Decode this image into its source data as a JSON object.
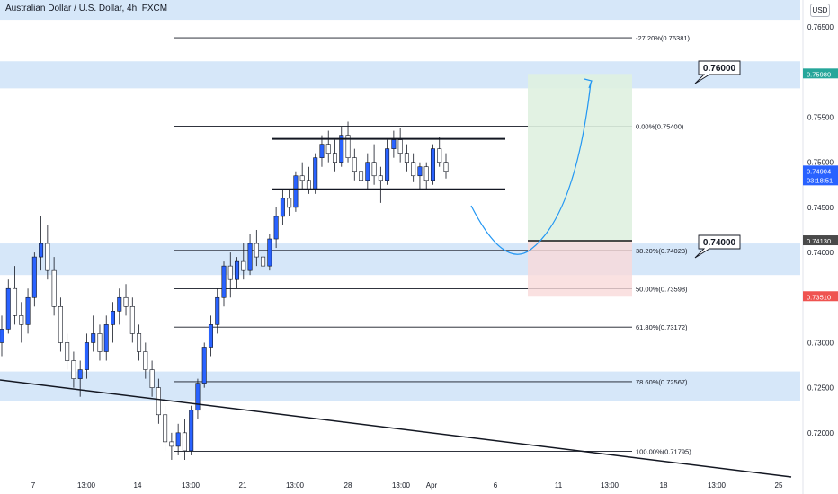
{
  "title": "Australian Dollar / U.S. Dollar, 4h, FXCM",
  "currency_button": "USD",
  "price_tags": [
    {
      "label": "0.75980",
      "color": "#26a69a"
    },
    {
      "label": "0.74904",
      "sub": "03:18:51",
      "color": "#2962ff"
    },
    {
      "label": "0.74130",
      "color": "#4a4a4a"
    },
    {
      "label": "0.73510",
      "color": "#ef5350"
    }
  ],
  "callouts": [
    "0.76000",
    "0.74000"
  ],
  "chart_data": {
    "type": "candlestick",
    "symbol": "AUDUSD",
    "timeframe": "4h",
    "ylim": [
      0.716,
      0.768
    ],
    "y_ticks": [
      "0.76500",
      "0.76000",
      "0.75500",
      "0.75000",
      "0.74500",
      "0.74000",
      "0.73500",
      "0.73000",
      "0.72500",
      "0.72000"
    ],
    "x_ticks": [
      "7",
      "13:00",
      "14",
      "13:00",
      "21",
      "13:00",
      "28",
      "13:00",
      "Apr",
      "6",
      "11",
      "13:00",
      "18",
      "13:00",
      "25"
    ],
    "fib_levels": [
      {
        "label": "-27.20%(0.76381)",
        "price": 0.76381
      },
      {
        "label": "0.00%(0.75400)",
        "price": 0.754
      },
      {
        "label": "38.20%(0.74023)",
        "price": 0.74023
      },
      {
        "label": "50.00%(0.73598)",
        "price": 0.73598
      },
      {
        "label": "61.80%(0.73172)",
        "price": 0.73172
      },
      {
        "label": "78.60%(0.72567)",
        "price": 0.72567
      },
      {
        "label": "100.00%(0.71795)",
        "price": 0.71795
      }
    ],
    "support_zones": [
      {
        "from": 0.7658,
        "to": 0.768
      },
      {
        "from": 0.7582,
        "to": 0.7612
      },
      {
        "from": 0.7375,
        "to": 0.741
      },
      {
        "from": 0.7235,
        "to": 0.7268
      }
    ],
    "range_box": {
      "top": 0.7526,
      "bottom": 0.747
    },
    "trade_position": {
      "take_profit": 0.7598,
      "entry": 0.7413,
      "stop": 0.7351
    },
    "last_price": 0.74904,
    "candles": [
      [
        0.73,
        0.733,
        0.7285,
        0.7315
      ],
      [
        0.7315,
        0.737,
        0.731,
        0.736
      ],
      [
        0.736,
        0.7385,
        0.732,
        0.733
      ],
      [
        0.733,
        0.7345,
        0.73,
        0.732
      ],
      [
        0.732,
        0.736,
        0.731,
        0.735
      ],
      [
        0.735,
        0.74,
        0.734,
        0.7395
      ],
      [
        0.7395,
        0.744,
        0.738,
        0.741
      ],
      [
        0.741,
        0.743,
        0.737,
        0.738
      ],
      [
        0.738,
        0.7395,
        0.733,
        0.734
      ],
      [
        0.734,
        0.735,
        0.729,
        0.73
      ],
      [
        0.73,
        0.731,
        0.727,
        0.728
      ],
      [
        0.728,
        0.729,
        0.725,
        0.726
      ],
      [
        0.726,
        0.728,
        0.724,
        0.727
      ],
      [
        0.727,
        0.731,
        0.726,
        0.73
      ],
      [
        0.73,
        0.733,
        0.729,
        0.731
      ],
      [
        0.731,
        0.732,
        0.728,
        0.729
      ],
      [
        0.729,
        0.733,
        0.728,
        0.732
      ],
      [
        0.732,
        0.7345,
        0.73,
        0.7335
      ],
      [
        0.7335,
        0.736,
        0.732,
        0.735
      ],
      [
        0.735,
        0.7365,
        0.733,
        0.734
      ],
      [
        0.734,
        0.735,
        0.73,
        0.731
      ],
      [
        0.731,
        0.732,
        0.728,
        0.729
      ],
      [
        0.729,
        0.73,
        0.726,
        0.727
      ],
      [
        0.727,
        0.728,
        0.724,
        0.725
      ],
      [
        0.725,
        0.726,
        0.721,
        0.722
      ],
      [
        0.722,
        0.723,
        0.718,
        0.719
      ],
      [
        0.719,
        0.72,
        0.717,
        0.7185
      ],
      [
        0.7185,
        0.721,
        0.7175,
        0.72
      ],
      [
        0.72,
        0.7215,
        0.717,
        0.718
      ],
      [
        0.718,
        0.723,
        0.7175,
        0.7225
      ],
      [
        0.7225,
        0.726,
        0.7215,
        0.7255
      ],
      [
        0.7255,
        0.73,
        0.725,
        0.7295
      ],
      [
        0.7295,
        0.733,
        0.7285,
        0.732
      ],
      [
        0.732,
        0.736,
        0.731,
        0.735
      ],
      [
        0.735,
        0.739,
        0.734,
        0.7385
      ],
      [
        0.7385,
        0.74,
        0.735,
        0.737
      ],
      [
        0.737,
        0.7395,
        0.736,
        0.739
      ],
      [
        0.739,
        0.741,
        0.737,
        0.738
      ],
      [
        0.738,
        0.742,
        0.7375,
        0.741
      ],
      [
        0.741,
        0.7425,
        0.7385,
        0.7395
      ],
      [
        0.7395,
        0.7405,
        0.7375,
        0.7385
      ],
      [
        0.7385,
        0.742,
        0.738,
        0.7415
      ],
      [
        0.7415,
        0.745,
        0.7405,
        0.744
      ],
      [
        0.744,
        0.747,
        0.743,
        0.746
      ],
      [
        0.746,
        0.747,
        0.744,
        0.745
      ],
      [
        0.745,
        0.749,
        0.7445,
        0.7485
      ],
      [
        0.7485,
        0.75,
        0.747,
        0.748
      ],
      [
        0.748,
        0.7495,
        0.7465,
        0.747
      ],
      [
        0.747,
        0.751,
        0.7465,
        0.7505
      ],
      [
        0.7505,
        0.753,
        0.7495,
        0.752
      ],
      [
        0.752,
        0.7535,
        0.75,
        0.751
      ],
      [
        0.751,
        0.7525,
        0.749,
        0.75
      ],
      [
        0.75,
        0.754,
        0.7495,
        0.753
      ],
      [
        0.753,
        0.7545,
        0.75,
        0.7505
      ],
      [
        0.7505,
        0.7515,
        0.748,
        0.749
      ],
      [
        0.749,
        0.75,
        0.747,
        0.748
      ],
      [
        0.748,
        0.751,
        0.747,
        0.75
      ],
      [
        0.75,
        0.752,
        0.7475,
        0.7485
      ],
      [
        0.7485,
        0.7495,
        0.7455,
        0.748
      ],
      [
        0.748,
        0.7525,
        0.7475,
        0.7515
      ],
      [
        0.7515,
        0.7535,
        0.7505,
        0.7525
      ],
      [
        0.7525,
        0.7538,
        0.75,
        0.751
      ],
      [
        0.751,
        0.752,
        0.749,
        0.75
      ],
      [
        0.75,
        0.751,
        0.7478,
        0.7485
      ],
      [
        0.7485,
        0.75,
        0.747,
        0.7495
      ],
      [
        0.7495,
        0.75,
        0.747,
        0.748
      ],
      [
        0.748,
        0.752,
        0.7475,
        0.7515
      ],
      [
        0.7515,
        0.7528,
        0.7495,
        0.75
      ],
      [
        0.75,
        0.751,
        0.7482,
        0.749
      ]
    ]
  }
}
